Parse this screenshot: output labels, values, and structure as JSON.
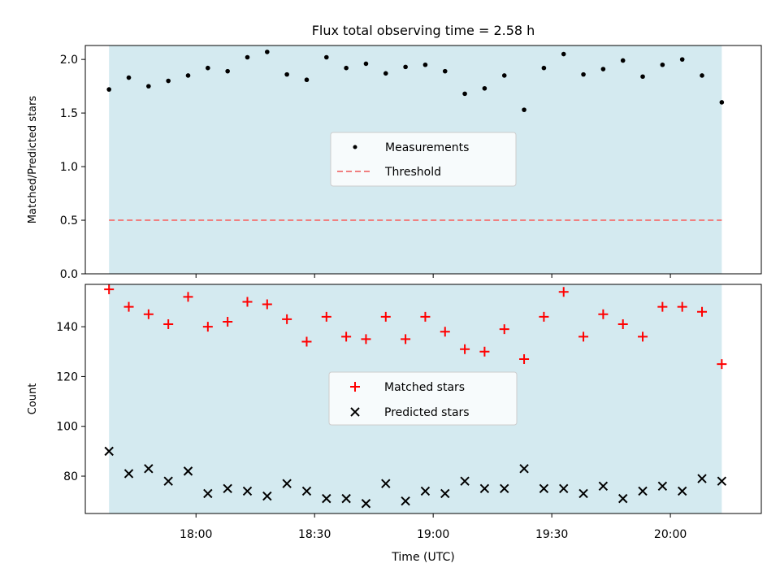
{
  "title": "Flux total observing time = 2.58 h",
  "xaxis": {
    "label": "Time (UTC)",
    "ticks": [
      {
        "t": 1080,
        "label": "18:00"
      },
      {
        "t": 1110,
        "label": "18:30"
      },
      {
        "t": 1140,
        "label": "19:00"
      },
      {
        "t": 1170,
        "label": "19:30"
      },
      {
        "t": 1200,
        "label": "20:00"
      }
    ]
  },
  "shade_color": "#d4eaf0",
  "chart_data": [
    {
      "type": "scatter",
      "ylabel": "Matched/Predicted stars",
      "xlim": [
        "17:32",
        "20:23"
      ],
      "ylim": [
        0,
        2.13
      ],
      "yticks": [
        {
          "v": 0,
          "label": "0.0"
        },
        {
          "v": 0.5,
          "label": "0.5"
        },
        {
          "v": 1.0,
          "label": "1.0"
        },
        {
          "v": 1.5,
          "label": "1.5"
        },
        {
          "v": 2.0,
          "label": "2.0"
        }
      ],
      "shaded_span": [
        "17:38",
        "20:13"
      ],
      "threshold": {
        "name": "Threshold",
        "value": 0.5,
        "color": "#f08080"
      },
      "legend_loc": "center",
      "series": [
        {
          "name": "Measurements",
          "marker": "dot",
          "color": "#000000",
          "x": [
            "17:38",
            "17:43",
            "17:48",
            "17:53",
            "17:58",
            "18:03",
            "18:08",
            "18:13",
            "18:18",
            "18:23",
            "18:28",
            "18:33",
            "18:38",
            "18:43",
            "18:48",
            "18:53",
            "18:58",
            "19:03",
            "19:08",
            "19:13",
            "19:18",
            "19:23",
            "19:28",
            "19:33",
            "19:38",
            "19:43",
            "19:48",
            "19:53",
            "19:58",
            "20:03",
            "20:08",
            "20:13"
          ],
          "y": [
            1.72,
            1.83,
            1.75,
            1.8,
            1.85,
            1.92,
            1.89,
            2.02,
            2.07,
            1.86,
            1.81,
            2.02,
            1.92,
            1.96,
            1.87,
            1.93,
            1.95,
            1.89,
            1.68,
            1.73,
            1.85,
            1.53,
            1.92,
            2.05,
            1.86,
            1.91,
            1.99,
            1.84,
            1.95,
            2.0,
            1.85,
            1.6
          ]
        }
      ]
    },
    {
      "type": "scatter",
      "ylabel": "Count",
      "xlim": [
        "17:32",
        "20:23"
      ],
      "ylim": [
        65,
        157
      ],
      "yticks": [
        {
          "v": 80,
          "label": "80"
        },
        {
          "v": 100,
          "label": "100"
        },
        {
          "v": 120,
          "label": "120"
        },
        {
          "v": 140,
          "label": "140"
        }
      ],
      "shaded_span": [
        "17:38",
        "20:13"
      ],
      "legend_loc": "center",
      "series": [
        {
          "name": "Matched stars",
          "marker": "plus",
          "color": "#ff0000",
          "x": [
            "17:38",
            "17:43",
            "17:48",
            "17:53",
            "17:58",
            "18:03",
            "18:08",
            "18:13",
            "18:18",
            "18:23",
            "18:28",
            "18:33",
            "18:38",
            "18:43",
            "18:48",
            "18:53",
            "18:58",
            "19:03",
            "19:08",
            "19:13",
            "19:18",
            "19:23",
            "19:28",
            "19:33",
            "19:38",
            "19:43",
            "19:48",
            "19:53",
            "19:58",
            "20:03",
            "20:08",
            "20:13"
          ],
          "y": [
            155,
            148,
            145,
            141,
            152,
            140,
            142,
            150,
            149,
            143,
            134,
            144,
            136,
            135,
            144,
            135,
            144,
            138,
            131,
            130,
            139,
            127,
            144,
            154,
            136,
            145,
            141,
            136,
            148,
            148,
            146,
            125
          ]
        },
        {
          "name": "Predicted stars",
          "marker": "x",
          "color": "#000000",
          "x": [
            "17:38",
            "17:43",
            "17:48",
            "17:53",
            "17:58",
            "18:03",
            "18:08",
            "18:13",
            "18:18",
            "18:23",
            "18:28",
            "18:33",
            "18:38",
            "18:43",
            "18:48",
            "18:53",
            "18:58",
            "19:03",
            "19:08",
            "19:13",
            "19:18",
            "19:23",
            "19:28",
            "19:33",
            "19:38",
            "19:43",
            "19:48",
            "19:53",
            "19:58",
            "20:03",
            "20:08",
            "20:13"
          ],
          "y": [
            90,
            81,
            83,
            78,
            82,
            73,
            75,
            74,
            72,
            77,
            74,
            71,
            71,
            69,
            77,
            70,
            74,
            73,
            78,
            75,
            75,
            83,
            75,
            75,
            73,
            76,
            71,
            74,
            76,
            74,
            79,
            78
          ]
        }
      ]
    }
  ]
}
